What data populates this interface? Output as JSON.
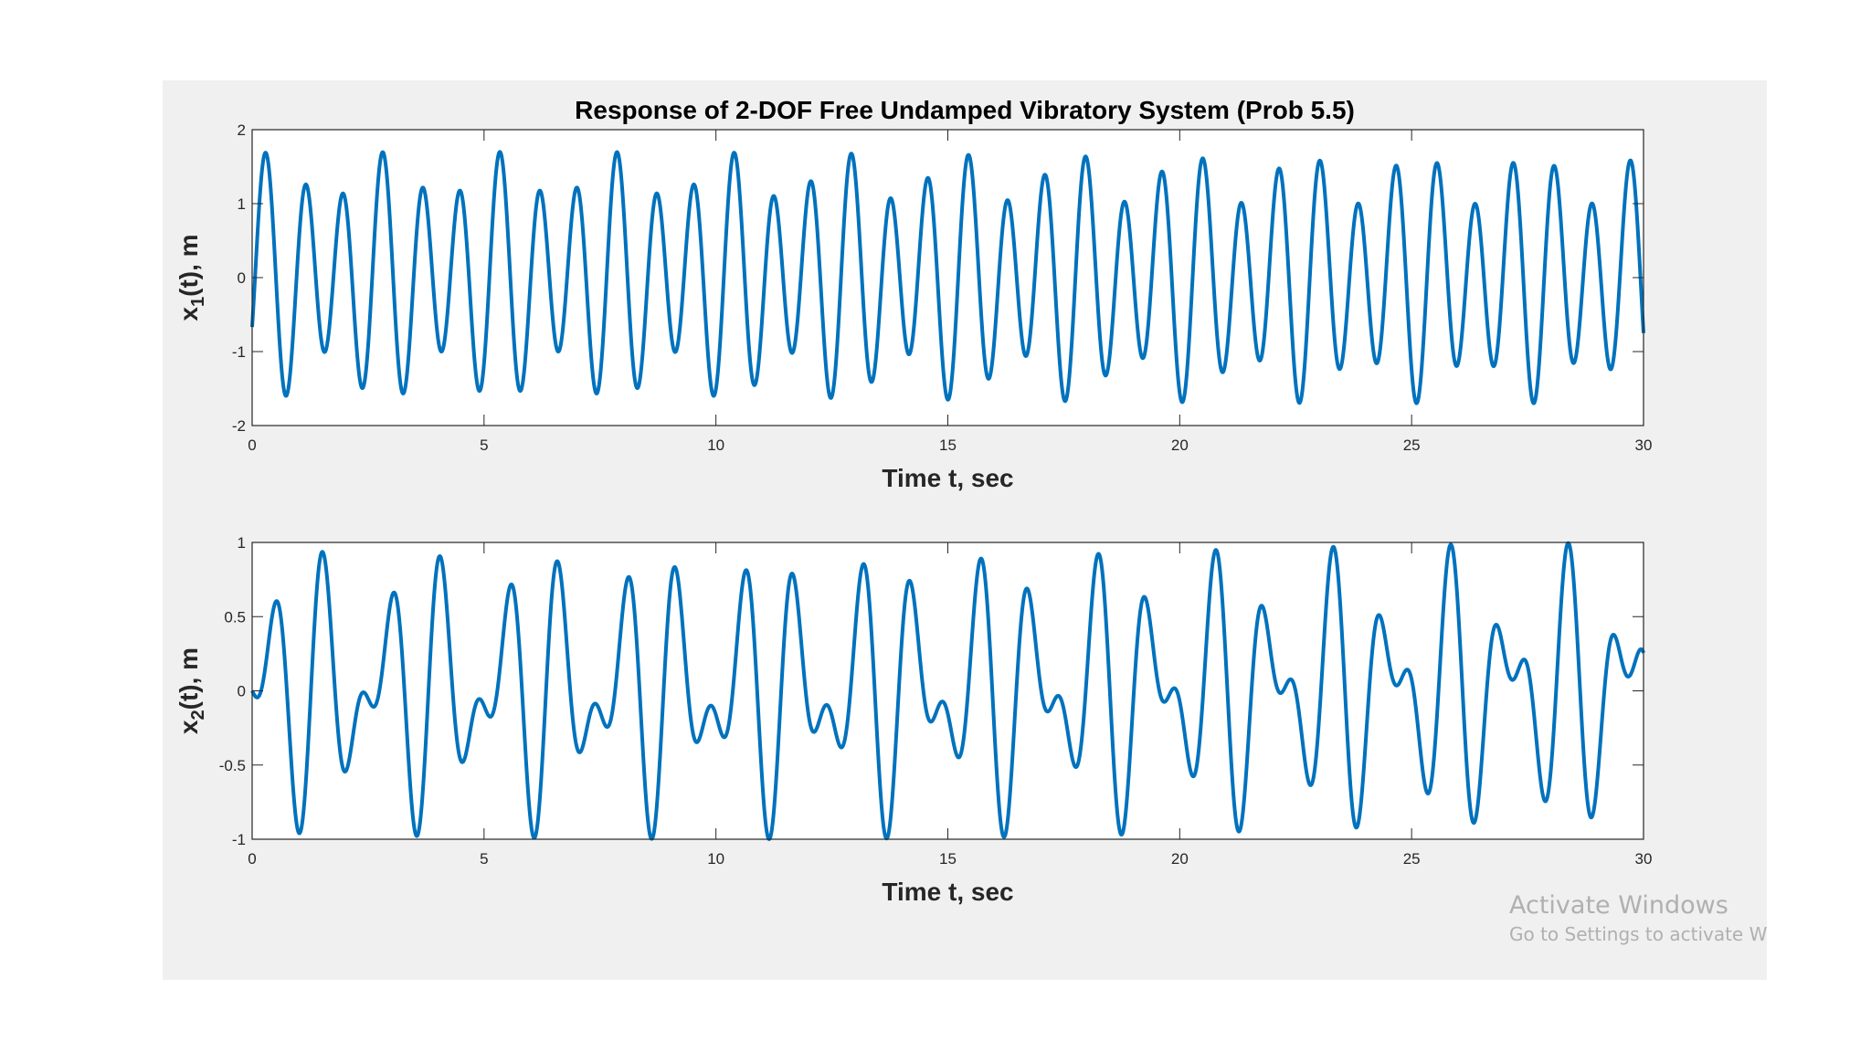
{
  "figure_title": "Response of 2-DOF Free Undamped Vibratory System (Prob 5.5)",
  "watermark": {
    "line1": "Activate Windows",
    "line2": "Go to Settings to activate Windows."
  },
  "colors": {
    "line": "#0072bd",
    "figure_bg": "#f0f0f0",
    "axes_bg": "#ffffff",
    "axis": "#262626"
  },
  "chart_data": [
    {
      "type": "line",
      "title": "",
      "xlabel": "Time t, sec",
      "ylabel_prefix": "x",
      "ylabel_sub": "1",
      "ylabel_suffix": "(t), m",
      "xlim": [
        0,
        30
      ],
      "ylim": [
        -2,
        2
      ],
      "xticks": [
        0,
        5,
        10,
        15,
        20,
        25,
        30
      ],
      "yticks": [
        -2,
        -1,
        0,
        1,
        2
      ],
      "grid": false,
      "series": [
        {
          "name": "x1(t)",
          "model": "x(t) = a1*cos(w1*t + p1) + a2*cos(w2*t + p2)",
          "components": [
            {
              "amplitude": 0.35,
              "omega": 4.93,
              "phase": -1.2
            },
            {
              "amplitude": 1.35,
              "omega": 7.47,
              "phase": -2.2
            }
          ],
          "t_start": 0,
          "t_end": 30
        }
      ]
    },
    {
      "type": "line",
      "title": "",
      "xlabel": "Time t, sec",
      "ylabel_prefix": "x",
      "ylabel_sub": "2",
      "ylabel_suffix": "(t), m",
      "xlim": [
        0,
        30
      ],
      "ylim": [
        -1,
        1
      ],
      "xticks": [
        0,
        5,
        10,
        15,
        20,
        25,
        30
      ],
      "yticks": [
        -1,
        -0.5,
        0,
        0.5,
        1
      ],
      "grid": false,
      "series": [
        {
          "name": "x2(t)",
          "model": "x(t) = a1*cos(w1*t + p1) + a2*cos(w2*t + p2)",
          "components": [
            {
              "amplitude": 0.55,
              "omega": 4.93,
              "phase": -1.57
            },
            {
              "amplitude": 0.45,
              "omega": 7.47,
              "phase": 1.57
            }
          ],
          "t_start": 0,
          "t_end": 30
        }
      ]
    }
  ]
}
